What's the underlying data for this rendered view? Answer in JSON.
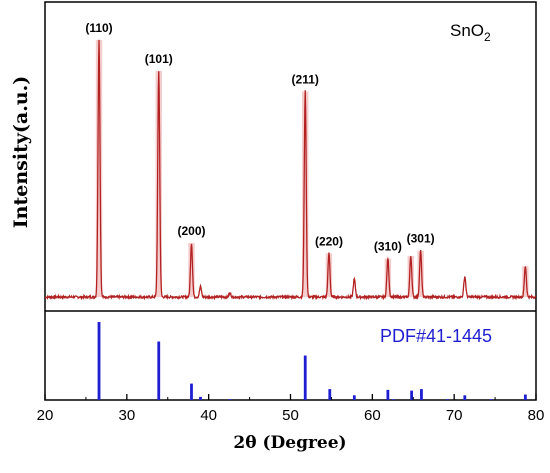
{
  "chart_data": {
    "type": "line",
    "title": "",
    "sample_label_main": "SnO",
    "sample_label_sub": "2",
    "xlabel": "2θ (Degree)",
    "ylabel": "Intensity(a.u.)",
    "xlim": [
      20,
      80
    ],
    "x_ticks": [
      "20",
      "30",
      "40",
      "50",
      "60",
      "70",
      "80"
    ],
    "colors": {
      "pattern": "#b22222",
      "glow": "#f2b8b8",
      "reference": "#1f1fd1"
    },
    "peaks": [
      {
        "two_theta": 26.6,
        "intensity": 100,
        "label": "(110)"
      },
      {
        "two_theta": 33.9,
        "intensity": 88,
        "label": "(101)"
      },
      {
        "two_theta": 37.9,
        "intensity": 21,
        "label": "(200)"
      },
      {
        "two_theta": 39.0,
        "intensity": 4,
        "label": ""
      },
      {
        "two_theta": 42.6,
        "intensity": 1.5,
        "label": ""
      },
      {
        "two_theta": 51.8,
        "intensity": 80,
        "label": "(211)"
      },
      {
        "two_theta": 54.7,
        "intensity": 17,
        "label": "(220)"
      },
      {
        "two_theta": 57.8,
        "intensity": 7,
        "label": ""
      },
      {
        "two_theta": 61.9,
        "intensity": 15,
        "label": "(310)"
      },
      {
        "two_theta": 64.7,
        "intensity": 16,
        "label": ""
      },
      {
        "two_theta": 65.9,
        "intensity": 18,
        "label": "(301)"
      },
      {
        "two_theta": 71.3,
        "intensity": 8,
        "label": ""
      },
      {
        "two_theta": 78.7,
        "intensity": 12,
        "label": ""
      }
    ],
    "reference": {
      "name": "PDF#41-1445",
      "lines": [
        {
          "two_theta": 26.6,
          "intensity": 100
        },
        {
          "two_theta": 33.9,
          "intensity": 75
        },
        {
          "two_theta": 37.9,
          "intensity": 21
        },
        {
          "two_theta": 39.0,
          "intensity": 4
        },
        {
          "two_theta": 42.6,
          "intensity": 1
        },
        {
          "two_theta": 51.8,
          "intensity": 57
        },
        {
          "two_theta": 54.8,
          "intensity": 14
        },
        {
          "two_theta": 57.8,
          "intensity": 6
        },
        {
          "two_theta": 61.9,
          "intensity": 13
        },
        {
          "two_theta": 62.6,
          "intensity": 1
        },
        {
          "two_theta": 64.8,
          "intensity": 12
        },
        {
          "two_theta": 66.0,
          "intensity": 14
        },
        {
          "two_theta": 69.2,
          "intensity": 1
        },
        {
          "two_theta": 71.3,
          "intensity": 6
        },
        {
          "two_theta": 74.5,
          "intensity": 1
        },
        {
          "two_theta": 78.7,
          "intensity": 7
        }
      ]
    }
  }
}
